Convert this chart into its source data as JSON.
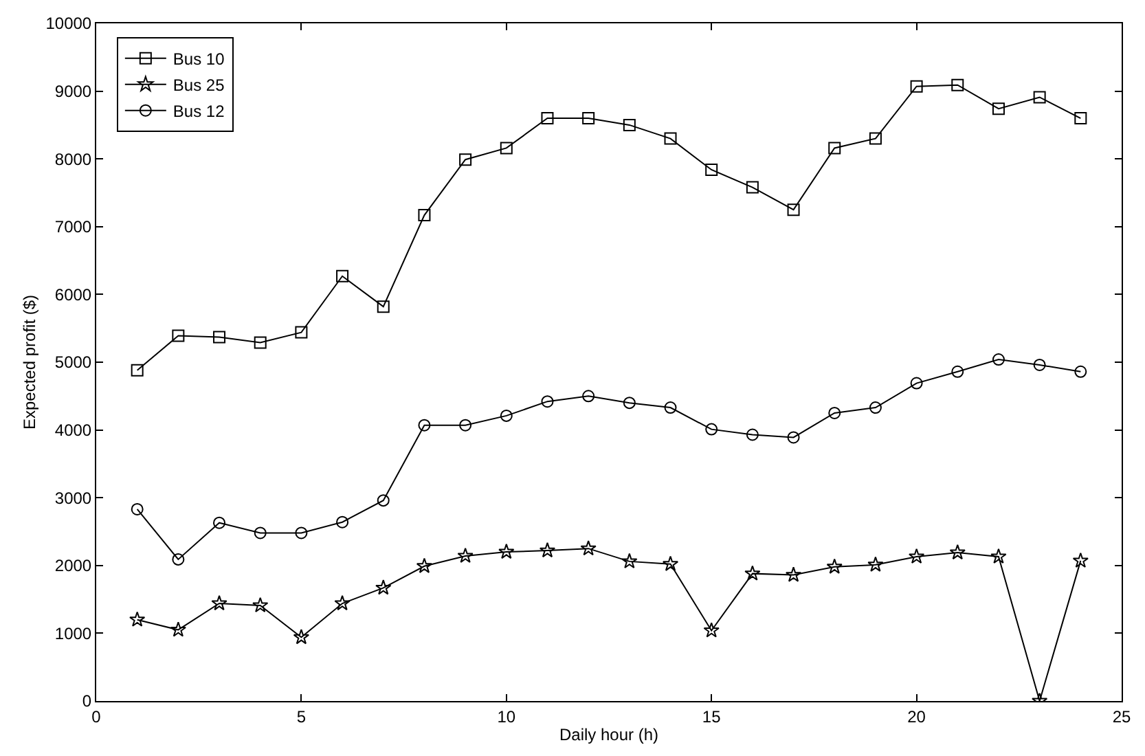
{
  "chart_data": {
    "type": "line",
    "xlabel": "Daily hour (h)",
    "ylabel": "Expected profit ($)",
    "x": [
      1,
      2,
      3,
      4,
      5,
      6,
      7,
      8,
      9,
      10,
      11,
      12,
      13,
      14,
      15,
      16,
      17,
      18,
      19,
      20,
      21,
      22,
      23,
      24
    ],
    "xlim": [
      0,
      25
    ],
    "xticks": [
      0,
      5,
      10,
      15,
      20,
      25
    ],
    "ylim": [
      0,
      10000
    ],
    "yticks": [
      0,
      1000,
      2000,
      3000,
      4000,
      5000,
      6000,
      7000,
      8000,
      9000,
      10000
    ],
    "legend": "top left",
    "line_style": "solid",
    "series": [
      {
        "name": "Bus 10",
        "color": "#000000",
        "marker": "square",
        "values": [
          4880,
          5390,
          5370,
          5290,
          5440,
          6270,
          5820,
          7170,
          7990,
          8160,
          8600,
          8600,
          8500,
          8300,
          7840,
          7580,
          7250,
          8160,
          8300,
          9070,
          9090,
          8740,
          8910,
          8600
        ]
      },
      {
        "name": "Bus 25",
        "color": "#000000",
        "marker": "star",
        "values": [
          1200,
          1050,
          1440,
          1410,
          940,
          1440,
          1670,
          1990,
          2140,
          2200,
          2220,
          2250,
          2060,
          2020,
          1040,
          1880,
          1860,
          1980,
          2010,
          2130,
          2190,
          2130,
          0,
          2070
        ]
      },
      {
        "name": "Bus 12",
        "color": "#000000",
        "marker": "circle",
        "values": [
          2830,
          2090,
          2630,
          2480,
          2480,
          2640,
          2960,
          4070,
          4070,
          4210,
          4420,
          4500,
          4400,
          4330,
          4010,
          3930,
          3890,
          4250,
          4330,
          4690,
          4860,
          5040,
          4960,
          4860
        ]
      }
    ]
  }
}
